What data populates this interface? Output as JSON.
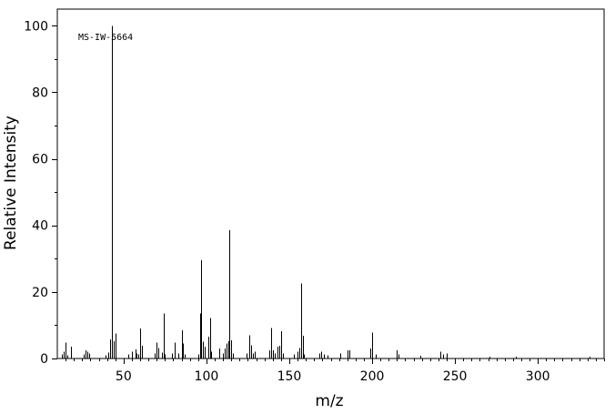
{
  "chart_data": {
    "type": "bar",
    "title": "",
    "annotation": "MS-IW-5664",
    "xlabel": "m/z",
    "ylabel": "Relative Intensity",
    "xlim": [
      10,
      340
    ],
    "ylim": [
      0,
      105
    ],
    "x_ticks": [
      50,
      100,
      150,
      200,
      250,
      300
    ],
    "y_ticks": [
      0,
      20,
      40,
      60,
      80,
      100
    ],
    "grid": false,
    "peaks": [
      {
        "mz": 13,
        "intensity": 1.2
      },
      {
        "mz": 14,
        "intensity": 2.0
      },
      {
        "mz": 15,
        "intensity": 4.8
      },
      {
        "mz": 16,
        "intensity": 1.0
      },
      {
        "mz": 18,
        "intensity": 3.5
      },
      {
        "mz": 26,
        "intensity": 1.2
      },
      {
        "mz": 27,
        "intensity": 2.5
      },
      {
        "mz": 28,
        "intensity": 2.0
      },
      {
        "mz": 29,
        "intensity": 1.5
      },
      {
        "mz": 39,
        "intensity": 1.0
      },
      {
        "mz": 41,
        "intensity": 1.8
      },
      {
        "mz": 42,
        "intensity": 5.8
      },
      {
        "mz": 43,
        "intensity": 100.0
      },
      {
        "mz": 44,
        "intensity": 5.2
      },
      {
        "mz": 45,
        "intensity": 7.5
      },
      {
        "mz": 53,
        "intensity": 1.2
      },
      {
        "mz": 55,
        "intensity": 2.0
      },
      {
        "mz": 57,
        "intensity": 2.8
      },
      {
        "mz": 58,
        "intensity": 1.5
      },
      {
        "mz": 59,
        "intensity": 1.2
      },
      {
        "mz": 60,
        "intensity": 9.0
      },
      {
        "mz": 61,
        "intensity": 3.8
      },
      {
        "mz": 69,
        "intensity": 1.5
      },
      {
        "mz": 70,
        "intensity": 4.8
      },
      {
        "mz": 71,
        "intensity": 3.2
      },
      {
        "mz": 73,
        "intensity": 1.8
      },
      {
        "mz": 74,
        "intensity": 13.5
      },
      {
        "mz": 75,
        "intensity": 1.2
      },
      {
        "mz": 79,
        "intensity": 1.5
      },
      {
        "mz": 81,
        "intensity": 4.8
      },
      {
        "mz": 83,
        "intensity": 1.5
      },
      {
        "mz": 85,
        "intensity": 8.5
      },
      {
        "mz": 86,
        "intensity": 4.5
      },
      {
        "mz": 87,
        "intensity": 1.2
      },
      {
        "mz": 95,
        "intensity": 1.2
      },
      {
        "mz": 96,
        "intensity": 13.5
      },
      {
        "mz": 97,
        "intensity": 29.5
      },
      {
        "mz": 98,
        "intensity": 5.0
      },
      {
        "mz": 99,
        "intensity": 3.5
      },
      {
        "mz": 101,
        "intensity": 6.5
      },
      {
        "mz": 102,
        "intensity": 12.2
      },
      {
        "mz": 103,
        "intensity": 2.0
      },
      {
        "mz": 108,
        "intensity": 3.0
      },
      {
        "mz": 110,
        "intensity": 1.5
      },
      {
        "mz": 111,
        "intensity": 3.0
      },
      {
        "mz": 112,
        "intensity": 4.5
      },
      {
        "mz": 113,
        "intensity": 5.2
      },
      {
        "mz": 114,
        "intensity": 38.5
      },
      {
        "mz": 115,
        "intensity": 5.5
      },
      {
        "mz": 116,
        "intensity": 1.5
      },
      {
        "mz": 124,
        "intensity": 1.5
      },
      {
        "mz": 126,
        "intensity": 7.0
      },
      {
        "mz": 127,
        "intensity": 4.0
      },
      {
        "mz": 128,
        "intensity": 1.5
      },
      {
        "mz": 129,
        "intensity": 2.0
      },
      {
        "mz": 138,
        "intensity": 2.5
      },
      {
        "mz": 139,
        "intensity": 9.2
      },
      {
        "mz": 140,
        "intensity": 2.5
      },
      {
        "mz": 141,
        "intensity": 1.5
      },
      {
        "mz": 143,
        "intensity": 3.5
      },
      {
        "mz": 144,
        "intensity": 3.8
      },
      {
        "mz": 145,
        "intensity": 8.2
      },
      {
        "mz": 146,
        "intensity": 1.5
      },
      {
        "mz": 153,
        "intensity": 1.2
      },
      {
        "mz": 155,
        "intensity": 2.0
      },
      {
        "mz": 156,
        "intensity": 3.2
      },
      {
        "mz": 157,
        "intensity": 22.5
      },
      {
        "mz": 158,
        "intensity": 6.8
      },
      {
        "mz": 159,
        "intensity": 1.2
      },
      {
        "mz": 168,
        "intensity": 1.5
      },
      {
        "mz": 169,
        "intensity": 2.0
      },
      {
        "mz": 171,
        "intensity": 1.2
      },
      {
        "mz": 173,
        "intensity": 1.0
      },
      {
        "mz": 181,
        "intensity": 1.5
      },
      {
        "mz": 185,
        "intensity": 2.5
      },
      {
        "mz": 186,
        "intensity": 2.5
      },
      {
        "mz": 199,
        "intensity": 3.0
      },
      {
        "mz": 200,
        "intensity": 7.8
      },
      {
        "mz": 202,
        "intensity": 1.2
      },
      {
        "mz": 215,
        "intensity": 2.5
      },
      {
        "mz": 216,
        "intensity": 1.2
      },
      {
        "mz": 229,
        "intensity": 0.8
      },
      {
        "mz": 241,
        "intensity": 2.0
      },
      {
        "mz": 243,
        "intensity": 1.2
      },
      {
        "mz": 245,
        "intensity": 1.5
      },
      {
        "mz": 271,
        "intensity": 0.5
      },
      {
        "mz": 287,
        "intensity": 0.5
      },
      {
        "mz": 331,
        "intensity": 0.5
      }
    ]
  },
  "colors": {
    "axis": "#000000",
    "peak": "#000000",
    "background": "#ffffff"
  }
}
